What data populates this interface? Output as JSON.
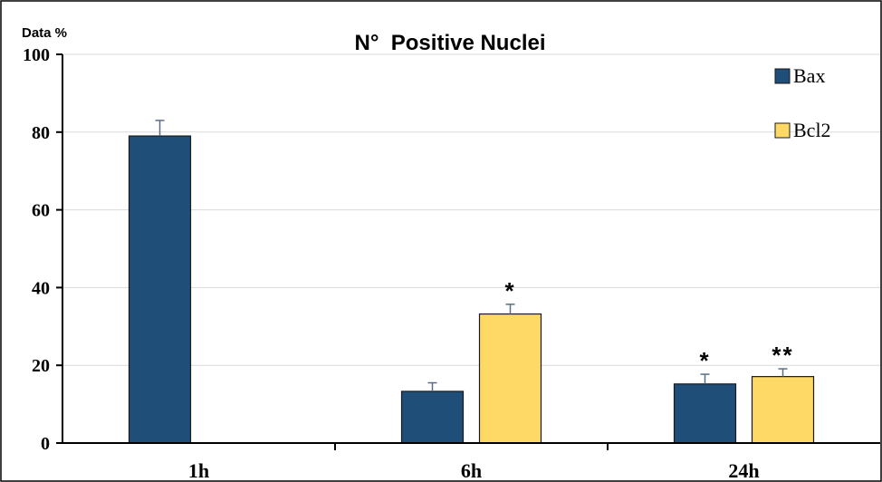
{
  "chart_data": {
    "type": "bar",
    "title": "N°  Positive Nuclei",
    "ylabel": "Data %",
    "xlabel": "",
    "categories": [
      "1h",
      "6h",
      "24h"
    ],
    "ylim": [
      0,
      100
    ],
    "yticks": [
      0,
      20,
      40,
      60,
      80,
      100
    ],
    "grid": true,
    "legend_position": "top-right",
    "series": [
      {
        "name": "Bax",
        "color": "#1f4e79",
        "values": [
          79,
          13.3,
          15.2
        ],
        "errors": [
          4,
          2.2,
          2.5
        ],
        "annotations": [
          "",
          "",
          "*"
        ]
      },
      {
        "name": "Bcl2",
        "color": "#ffd966",
        "values": [
          null,
          33.2,
          17.1
        ],
        "errors": [
          null,
          2.5,
          2.0
        ],
        "annotations": [
          "",
          "*",
          "**"
        ]
      }
    ]
  }
}
